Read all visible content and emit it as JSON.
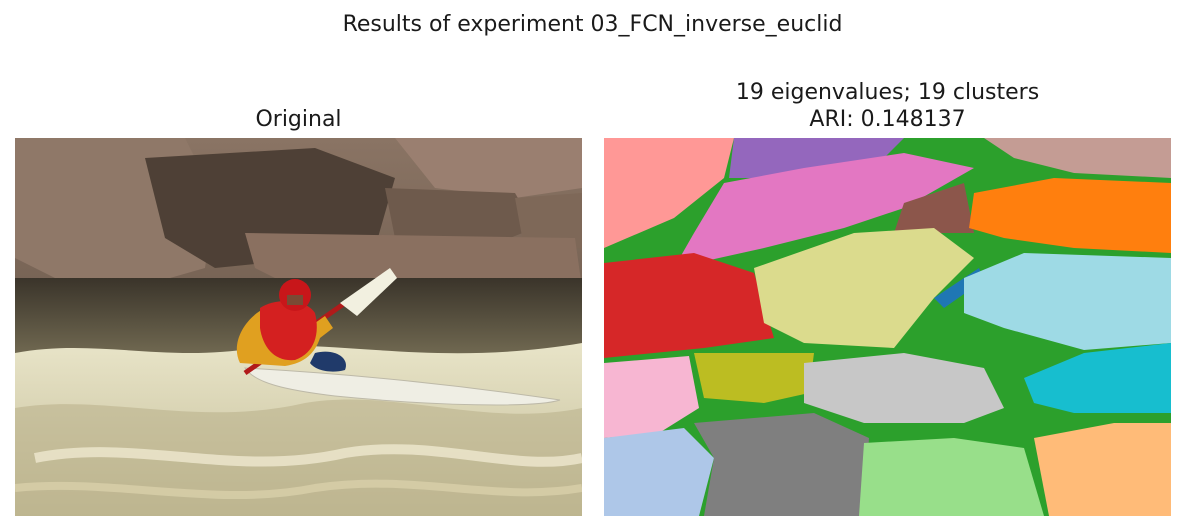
{
  "figure": {
    "suptitle": "Results of experiment 03_FCN_inverse_euclid",
    "left_panel": {
      "title": "Original"
    },
    "right_panel": {
      "title_line1": "19 eigenvalues; 19 clusters",
      "title_line2": "ARI: 0.148137"
    }
  },
  "images": {
    "original": {
      "subject": "kayaker in red helmet and life vest paddling a white kayak through whitewater rapids in front of large rocks"
    },
    "segmentation": {
      "cluster_count": 19,
      "cluster_colors": [
        "#ff9896",
        "#9467bd",
        "#e377c2",
        "#c49c94",
        "#8c564b",
        "#ff7f0e",
        "#2ca02c",
        "#dbdb8d",
        "#1f77b4",
        "#9edae5",
        "#d62728",
        "#f7b6d2",
        "#bcbd22",
        "#c7c7c7",
        "#17becf",
        "#aec7e8",
        "#7f7f7f",
        "#98df8a",
        "#ffbb78"
      ]
    }
  }
}
